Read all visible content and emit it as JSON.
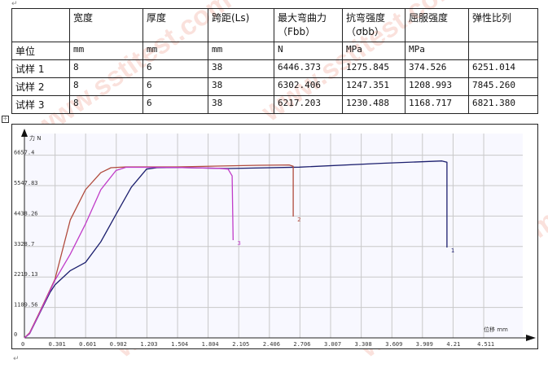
{
  "table": {
    "headers": [
      "",
      "宽度",
      "厚度",
      "跨距(Ls)",
      "最大弯曲力（Fbb）",
      "抗弯强度（σbb）",
      "屈服强度",
      "弹性比列"
    ],
    "rows": [
      [
        "单位",
        "mm",
        "mm",
        "mm",
        "N",
        "MPa",
        "MPa",
        ""
      ],
      [
        "试样 1",
        "8",
        "6",
        "38",
        "6446.373",
        "1275.845",
        "374.526",
        "6251.014"
      ],
      [
        "试样 2",
        "8",
        "6",
        "38",
        "6302.406",
        "1247.351",
        "1208.993",
        "7845.260"
      ],
      [
        "试样 3",
        "8",
        "6",
        "38",
        "6217.203",
        "1230.488",
        "1168.717",
        "6821.380"
      ]
    ]
  },
  "watermark": "www.sstitest.com",
  "chart_data": {
    "type": "line",
    "xlabel": "位移 mm",
    "ylabel": "力 N",
    "xticks": [
      "0",
      "0.301",
      "0.601",
      "0.902",
      "1.203",
      "1.504",
      "1.804",
      "2.105",
      "2.406",
      "2.706",
      "3.007",
      "3.308",
      "3.609",
      "3.909",
      "4.21",
      "4.511"
    ],
    "yticks": [
      "0",
      "1109.56",
      "2219.13",
      "3328.7",
      "4438.26",
      "5547.83",
      "6657.4"
    ],
    "xlim": [
      0,
      5.0
    ],
    "ylim": [
      0,
      6657.4
    ],
    "grid": true,
    "series": [
      {
        "name": "1",
        "color": "#1c1f6e",
        "points": [
          [
            0,
            0
          ],
          [
            0.05,
            150
          ],
          [
            0.15,
            900
          ],
          [
            0.25,
            1650
          ],
          [
            0.3,
            1930
          ],
          [
            0.45,
            2450
          ],
          [
            0.6,
            2750
          ],
          [
            0.75,
            3500
          ],
          [
            0.9,
            4500
          ],
          [
            1.05,
            5490
          ],
          [
            1.2,
            6150
          ],
          [
            1.3,
            6200
          ],
          [
            1.5,
            6210
          ],
          [
            2.0,
            6170
          ],
          [
            2.7,
            6220
          ],
          [
            3.5,
            6360
          ],
          [
            4.1,
            6446
          ],
          [
            4.15,
            6400
          ],
          [
            4.15,
            3293
          ]
        ]
      },
      {
        "name": "2",
        "color": "#b04a3c",
        "points": [
          [
            0,
            0
          ],
          [
            0.05,
            180
          ],
          [
            0.15,
            950
          ],
          [
            0.3,
            2135
          ],
          [
            0.45,
            4300
          ],
          [
            0.6,
            5400
          ],
          [
            0.75,
            6020
          ],
          [
            0.85,
            6200
          ],
          [
            1.0,
            6230
          ],
          [
            1.5,
            6230
          ],
          [
            2.3,
            6290
          ],
          [
            2.6,
            6302
          ],
          [
            2.64,
            6250
          ],
          [
            2.64,
            4420
          ]
        ]
      },
      {
        "name": "3",
        "color": "#c03cc8",
        "points": [
          [
            0,
            0
          ],
          [
            0.05,
            160
          ],
          [
            0.15,
            920
          ],
          [
            0.3,
            2100
          ],
          [
            0.45,
            3050
          ],
          [
            0.6,
            4150
          ],
          [
            0.75,
            5400
          ],
          [
            0.9,
            6100
          ],
          [
            1.0,
            6217
          ],
          [
            1.5,
            6210
          ],
          [
            1.9,
            6180
          ],
          [
            2.0,
            6150
          ],
          [
            2.04,
            5900
          ],
          [
            2.05,
            3560
          ]
        ]
      }
    ]
  }
}
